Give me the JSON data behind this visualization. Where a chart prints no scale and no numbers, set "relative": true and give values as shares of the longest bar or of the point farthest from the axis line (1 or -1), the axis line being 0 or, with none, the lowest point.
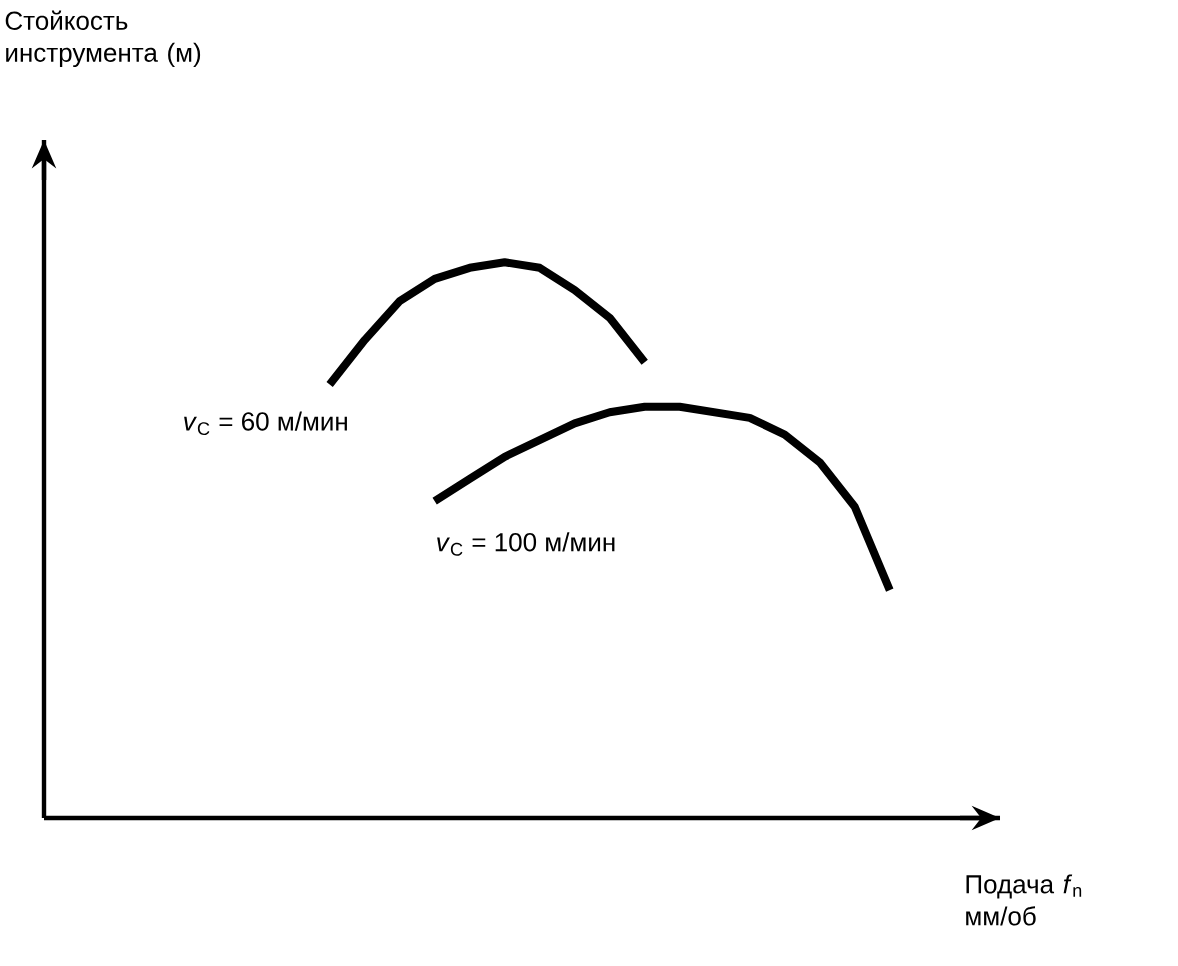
{
  "chart_data": {
    "type": "line",
    "relative": true,
    "annotations": [
      "Стойкость инструмента (м)"
    ],
    "xlabel": "Подача *f*$_{n}$ мм/об",
    "categories": [
      null,
      null,
      null,
      null,
      null,
      null,
      null,
      null,
      null,
      null,
      null,
      null,
      null,
      null,
      null,
      null,
      null
    ],
    "legend": false,
    "marker": "none",
    "line_style": "solid",
    "series": [
      {
        "name": "*v*$_{C}$ = 60 м/мин",
        "color": "#000000",
        "values": [
          0.78,
          0.86,
          0.93,
          0.97,
          0.99,
          1.0,
          0.99,
          0.95,
          0.9,
          0.82,
          null,
          null,
          null,
          null,
          null,
          null,
          null
        ]
      },
      {
        "name": "*v*$_{C}$ = 100 м/мин",
        "color": "#000000",
        "values": [
          null,
          null,
          null,
          0.57,
          0.61,
          0.65,
          0.68,
          0.71,
          0.73,
          0.74,
          0.74,
          0.73,
          0.72,
          0.69,
          0.64,
          0.56,
          0.41
        ]
      }
    ]
  }
}
